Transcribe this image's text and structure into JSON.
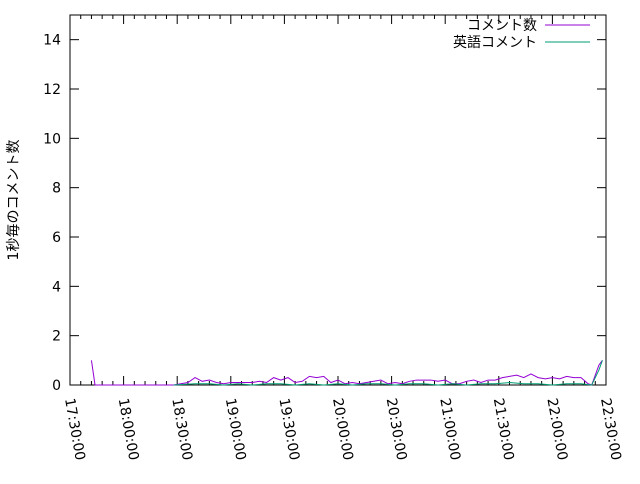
{
  "chart_data": {
    "type": "line",
    "title": "",
    "xlabel": "",
    "ylabel": "1秒毎のコメント数",
    "xlim": [
      "17:30:00",
      "22:30:00"
    ],
    "ylim": [
      0,
      15
    ],
    "yticks": [
      0,
      2,
      4,
      6,
      8,
      10,
      12,
      14
    ],
    "xticks": [
      "17:30:00",
      "18:00:00",
      "18:30:00",
      "19:00:00",
      "19:30:00",
      "20:00:00",
      "20:30:00",
      "21:00:00",
      "21:30:00",
      "22:00:00",
      "22:30:00"
    ],
    "grid": false,
    "legend_position": "top-right",
    "series": [
      {
        "name": "コメント数",
        "color": "#9400d3",
        "x": [
          "17:42",
          "17:44",
          "18:28",
          "18:36",
          "18:40",
          "18:44",
          "18:48",
          "18:52",
          "18:56",
          "19:00",
          "19:04",
          "19:08",
          "19:12",
          "19:16",
          "19:20",
          "19:24",
          "19:28",
          "19:32",
          "19:36",
          "19:40",
          "19:44",
          "19:48",
          "19:52",
          "19:56",
          "20:00",
          "20:04",
          "20:08",
          "20:12",
          "20:16",
          "20:20",
          "20:24",
          "20:28",
          "20:32",
          "20:36",
          "20:40",
          "20:44",
          "20:48",
          "20:52",
          "20:56",
          "21:00",
          "21:04",
          "21:08",
          "21:12",
          "21:16",
          "21:20",
          "21:24",
          "21:28",
          "21:32",
          "21:36",
          "21:40",
          "21:44",
          "21:48",
          "21:52",
          "21:56",
          "22:00",
          "22:04",
          "22:08",
          "22:12",
          "22:16",
          "22:20",
          "22:22",
          "22:26",
          "22:28"
        ],
        "y": [
          1.0,
          0,
          0,
          0.1,
          0.3,
          0.15,
          0.2,
          0.1,
          0.05,
          0.1,
          0.1,
          0.1,
          0.1,
          0.15,
          0.1,
          0.3,
          0.2,
          0.3,
          0.1,
          0.15,
          0.35,
          0.3,
          0.35,
          0.1,
          0.2,
          0.05,
          0.1,
          0.05,
          0.1,
          0.15,
          0.2,
          0.05,
          0.1,
          0.05,
          0.15,
          0.2,
          0.2,
          0.2,
          0.15,
          0.2,
          0.05,
          0.05,
          0.15,
          0.2,
          0.1,
          0.2,
          0.2,
          0.3,
          0.35,
          0.4,
          0.3,
          0.45,
          0.3,
          0.25,
          0.3,
          0.25,
          0.35,
          0.3,
          0.3,
          0.05,
          0,
          0.8,
          1.0
        ]
      },
      {
        "name": "英語コメント",
        "color": "#009e73",
        "x": [
          "18:28",
          "18:40",
          "18:48",
          "18:56",
          "19:04",
          "19:12",
          "19:20",
          "19:28",
          "19:36",
          "19:44",
          "19:52",
          "20:00",
          "20:08",
          "20:16",
          "20:24",
          "20:32",
          "20:40",
          "20:48",
          "20:56",
          "21:04",
          "21:12",
          "21:20",
          "21:28",
          "21:36",
          "21:44",
          "21:52",
          "22:00",
          "22:08",
          "22:16",
          "22:22",
          "22:26",
          "22:28"
        ],
        "y": [
          0,
          0.05,
          0.05,
          0,
          0.05,
          0,
          0.05,
          0.05,
          0,
          0.05,
          0,
          0.05,
          0,
          0.05,
          0.05,
          0,
          0.05,
          0.05,
          0,
          0.05,
          0,
          0.05,
          0.05,
          0.1,
          0.05,
          0.05,
          0,
          0.05,
          0.05,
          0,
          0.6,
          1.0
        ]
      }
    ]
  }
}
